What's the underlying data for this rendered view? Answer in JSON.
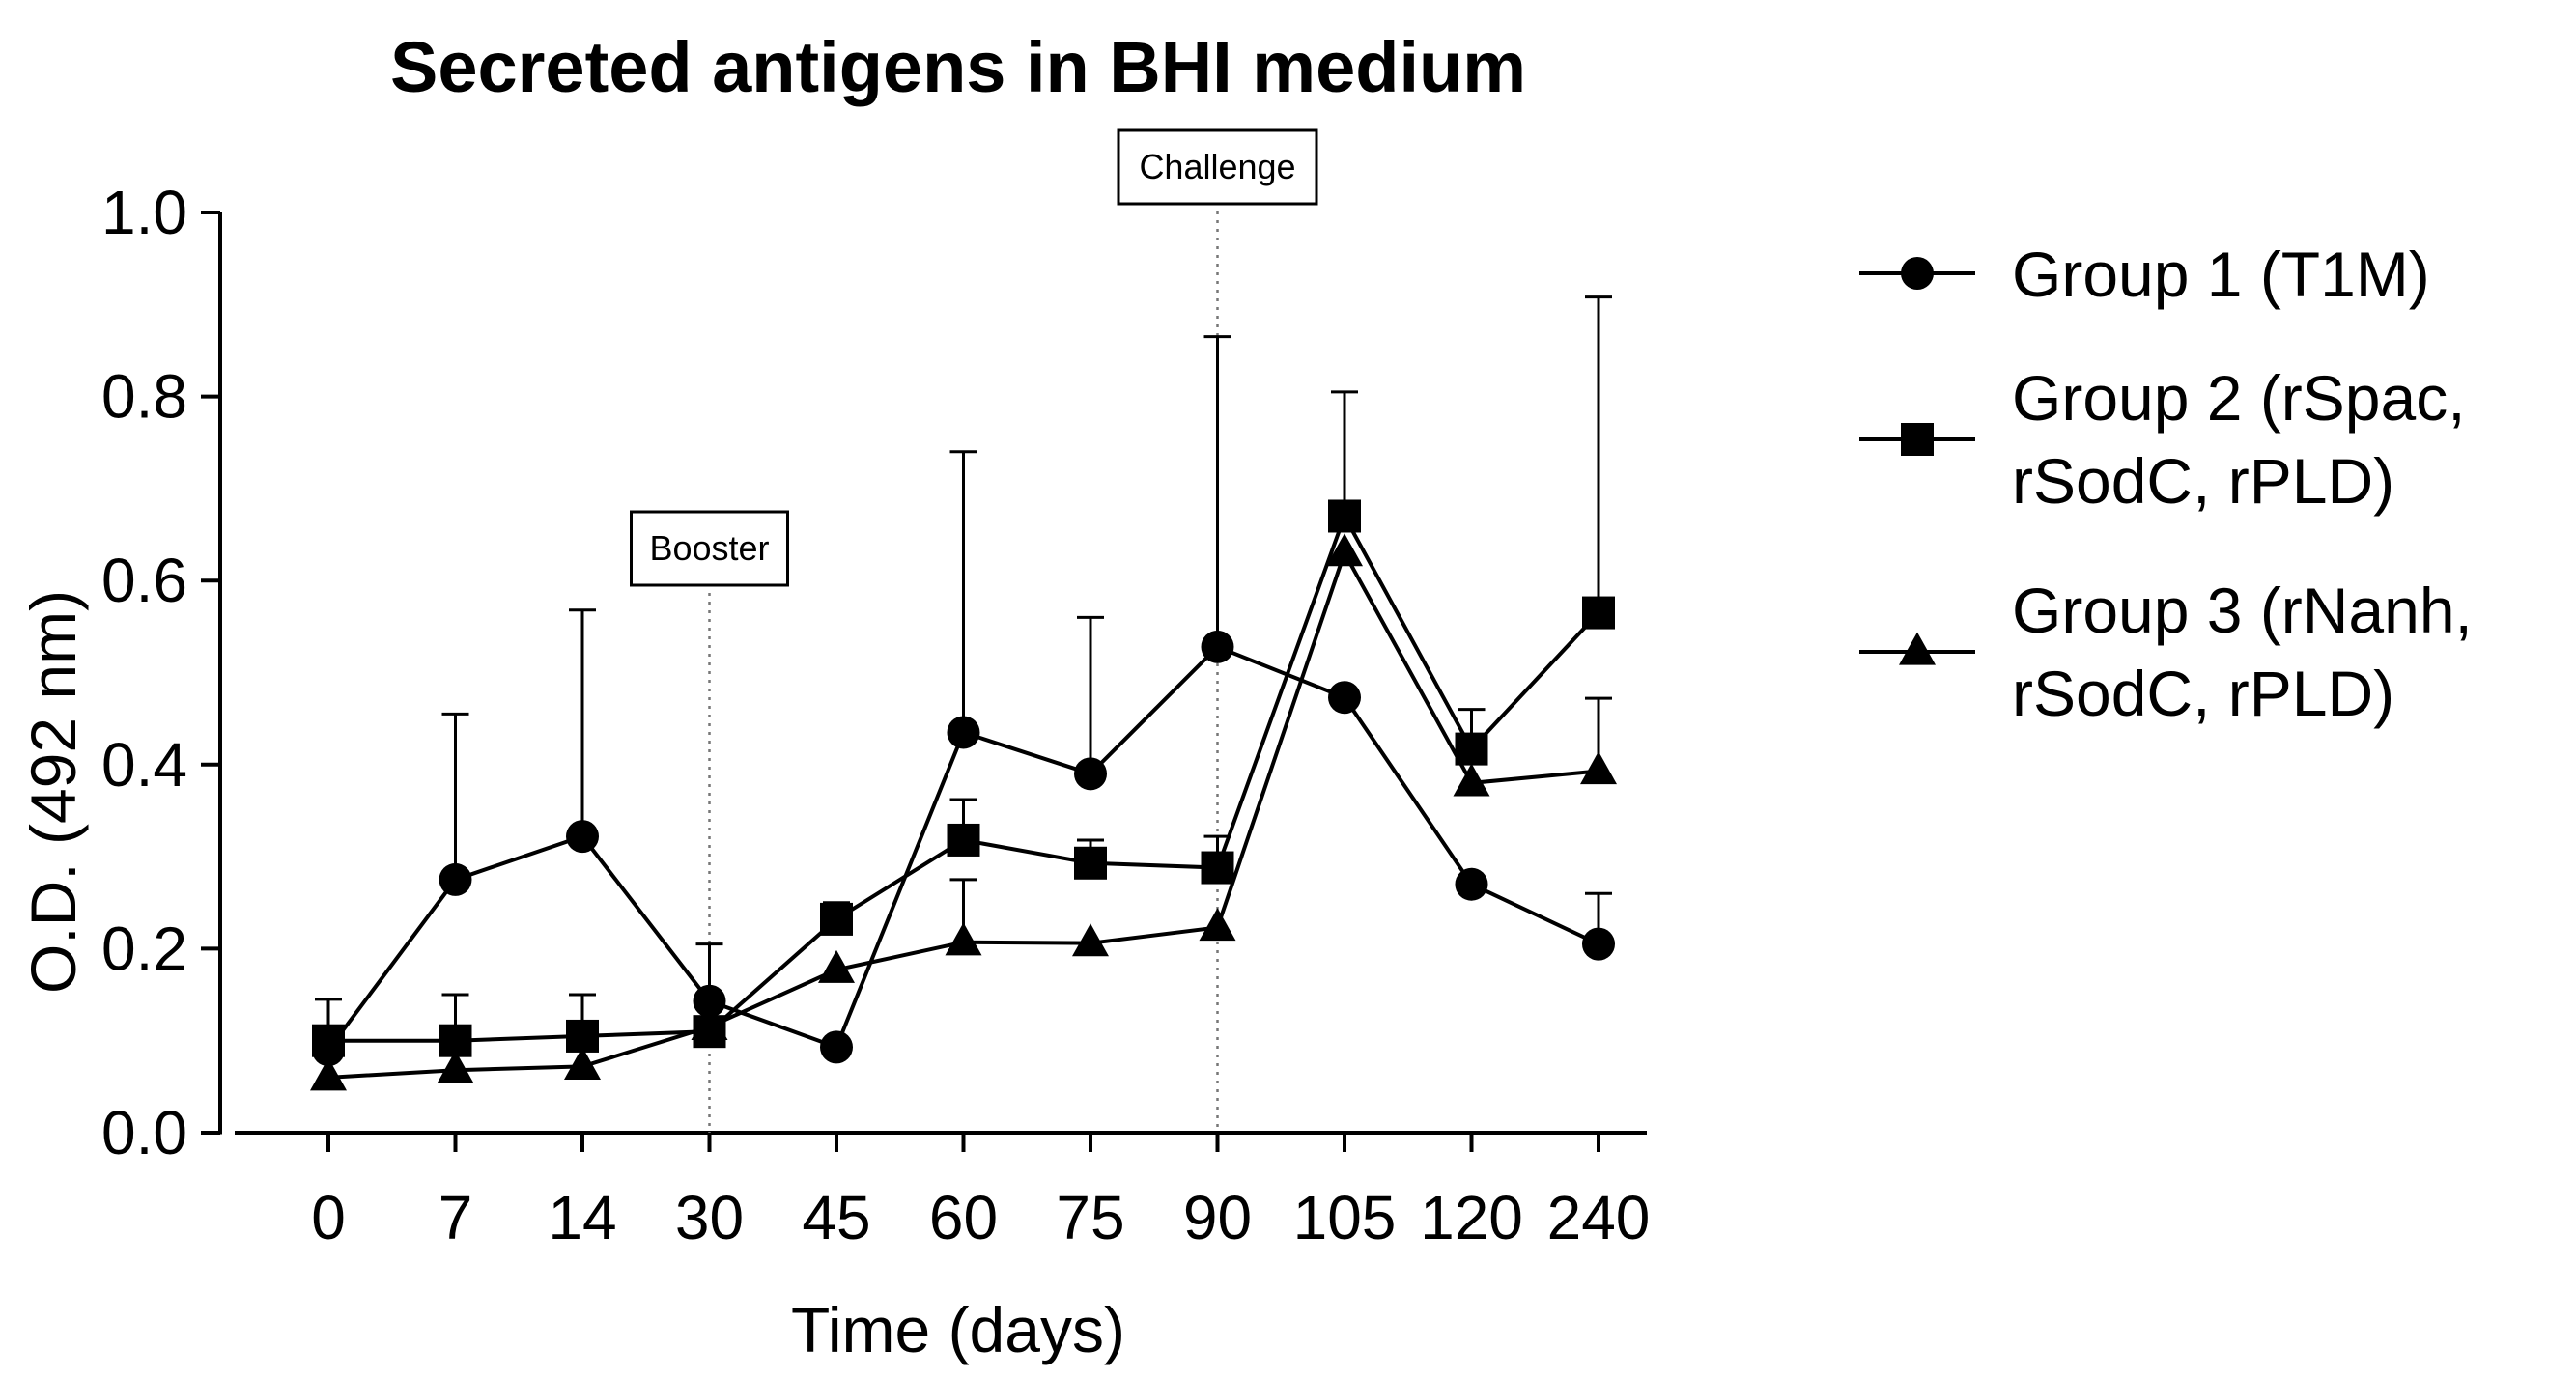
{
  "chart_data": {
    "type": "line",
    "title": "Secreted antigens in BHI medium",
    "xlabel": "Time (days)",
    "ylabel": "O.D. (492 nm)",
    "categories": [
      "0",
      "7",
      "14",
      "30",
      "45",
      "60",
      "75",
      "90",
      "105",
      "120",
      "240"
    ],
    "ylim": [
      0,
      1.0
    ],
    "yticks": [
      "0.0",
      "0.2",
      "0.4",
      "0.6",
      "0.8",
      "1.0"
    ],
    "grid": false,
    "legend_position": "right",
    "series": [
      {
        "name": "Group 1 (T1M)",
        "name_lines": [
          "Group 1 (T1M)"
        ],
        "marker": "circle",
        "values": [
          0.09,
          0.275,
          0.322,
          0.143,
          0.093,
          0.435,
          0.39,
          0.528,
          0.473,
          0.27,
          0.205
        ],
        "err_upper": [
          null,
          0.455,
          0.568,
          0.205,
          null,
          0.74,
          0.56,
          0.865,
          null,
          null,
          0.26
        ]
      },
      {
        "name": "Group 2 (rSpac, rSodC, rPLD)",
        "name_lines": [
          "Group 2 (rSpac,",
          "rSodC, rPLD)"
        ],
        "marker": "square",
        "values": [
          0.1,
          0.1,
          0.105,
          0.11,
          0.232,
          0.318,
          0.293,
          0.288,
          0.67,
          0.417,
          0.565
        ],
        "err_upper": [
          0.145,
          0.15,
          0.15,
          null,
          0.25,
          0.362,
          0.318,
          0.322,
          0.805,
          0.46,
          0.908
        ]
      },
      {
        "name": "Group 3 (rNanh, rSodC, rPLD)",
        "name_lines": [
          "Group 3 (rNanh,",
          "rSodC, rPLD)"
        ],
        "marker": "triangle",
        "values": [
          0.06,
          0.068,
          0.072,
          0.115,
          0.177,
          0.207,
          0.206,
          0.223,
          0.63,
          0.38,
          0.393
        ],
        "err_upper": [
          null,
          null,
          null,
          null,
          null,
          0.275,
          null,
          null,
          null,
          null,
          0.472
        ]
      }
    ],
    "annotations": [
      {
        "text": "Booster",
        "x": "30"
      },
      {
        "text": "Challenge",
        "x": "90"
      }
    ]
  }
}
